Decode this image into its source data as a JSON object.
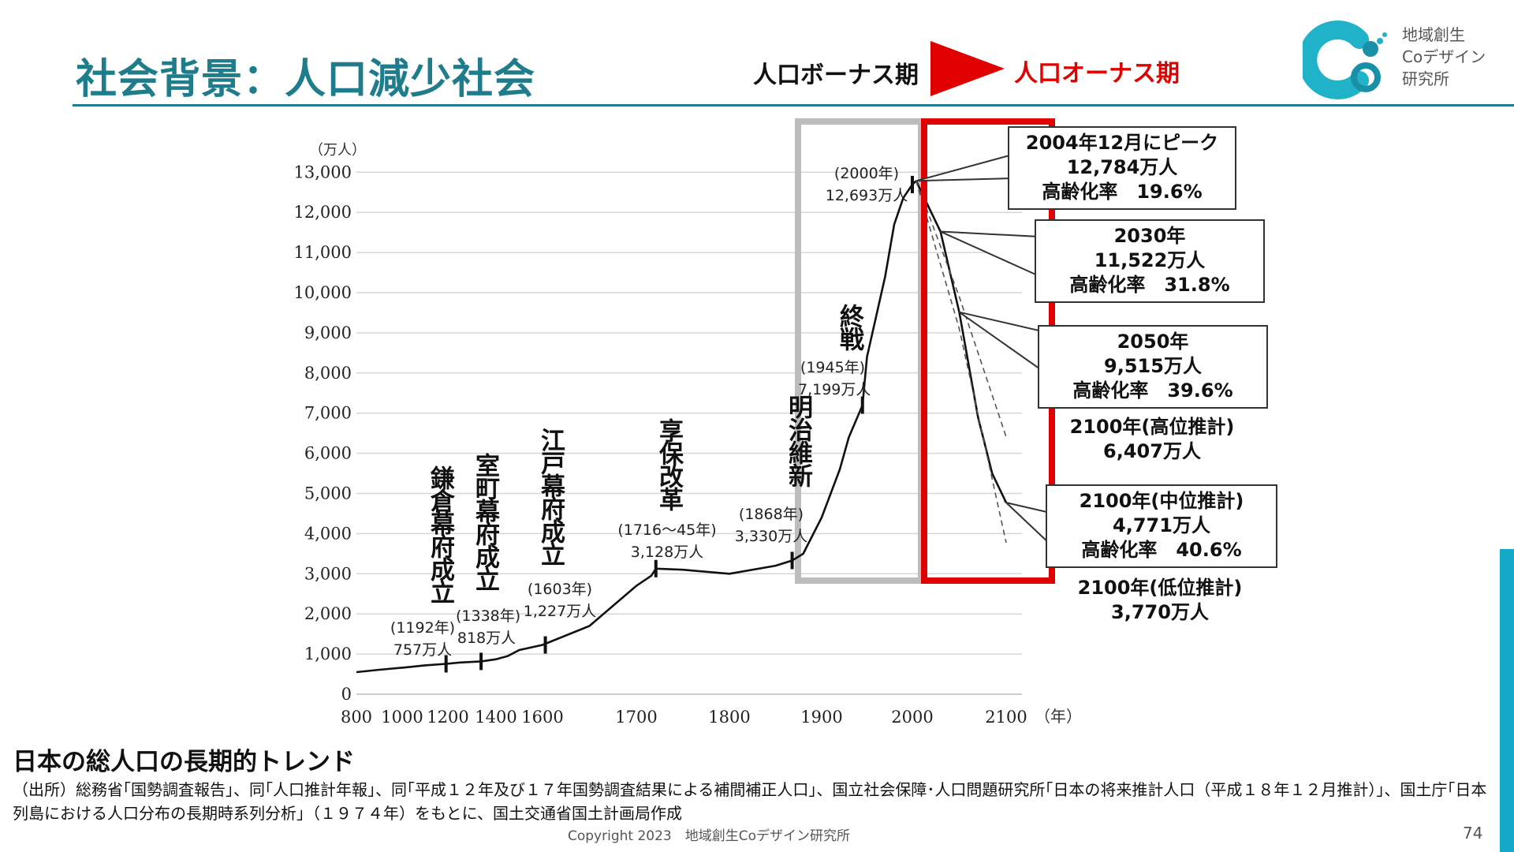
{
  "slide": {
    "title": "社会背景：人口減少社会",
    "phase_from": "人口ボーナス期",
    "phase_to": "人口オーナス期",
    "logo_lines": [
      "地域創生",
      "Coデザイン",
      "研究所"
    ],
    "subtitle": "日本の総人口の長期的トレンド",
    "source": "（出所）総務省｢国勢調査報告｣、同｢人口推計年報｣、同｢平成１２年及び１７年国勢調査結果による補間補正人口｣、国立社会保障･人口問題研究所｢日本の将来推計人口（平成１８年１２月推計）｣、国土庁｢日本列島における人口分布の長期時系列分析｣（１９７４年）をもとに、国土交通省国土計画局作成",
    "copyright": "Copyright 2023　地域創生Coデザイン研究所",
    "page_number": "74",
    "colors": {
      "accent": "#1f7c8a",
      "onus_red": "#e00000",
      "bonus_gray": "#bdbdbd",
      "side_bar": "#14a9c6"
    }
  },
  "chart_data": {
    "type": "line",
    "ylabel": "（万人）",
    "xlabel": "（年）",
    "xlim": [
      800,
      2100
    ],
    "ylim": [
      0,
      13000
    ],
    "x_ticks": [
      800,
      1000,
      1200,
      1400,
      1600,
      1700,
      1800,
      1900,
      2000,
      2100
    ],
    "y_ticks": [
      {
        "value": 0,
        "label": "0"
      },
      {
        "value": 1000,
        "label": "1,000"
      },
      {
        "value": 2000,
        "label": "2,000"
      },
      {
        "value": 3000,
        "label": "3,000"
      },
      {
        "value": 4000,
        "label": "4,000"
      },
      {
        "value": 5000,
        "label": "5,000"
      },
      {
        "value": 6000,
        "label": "6,000"
      },
      {
        "value": 7000,
        "label": "7,000"
      },
      {
        "value": 8000,
        "label": "8,000"
      },
      {
        "value": 9000,
        "label": "9,000"
      },
      {
        "value": 10000,
        "label": "10,000"
      },
      {
        "value": 11000,
        "label": "11,000"
      },
      {
        "value": 12000,
        "label": "12,000"
      },
      {
        "value": 13000,
        "label": "13,000"
      }
    ],
    "grid": true,
    "series": [
      {
        "values": [
          [
            800,
            551
          ],
          [
            900,
            610
          ],
          [
            1000,
            660
          ],
          [
            1100,
            720
          ],
          [
            1192,
            757
          ],
          [
            1250,
            790
          ],
          [
            1338,
            818
          ],
          [
            1400,
            870
          ],
          [
            1450,
            950
          ],
          [
            1500,
            1100
          ],
          [
            1600,
            1227
          ],
          [
            1650,
            1700
          ],
          [
            1700,
            2700
          ],
          [
            1716,
            2950
          ],
          [
            1721,
            3128
          ],
          [
            1750,
            3100
          ],
          [
            1800,
            3000
          ],
          [
            1850,
            3200
          ],
          [
            1868,
            3330
          ],
          [
            1880,
            3500
          ],
          [
            1900,
            4400
          ],
          [
            1920,
            5600
          ],
          [
            1930,
            6400
          ],
          [
            1945,
            7199
          ],
          [
            1950,
            8400
          ],
          [
            1960,
            9400
          ],
          [
            1970,
            10400
          ],
          [
            1980,
            11700
          ],
          [
            1990,
            12360
          ],
          [
            2000,
            12693
          ],
          [
            2004,
            12784
          ]
        ]
      },
      {
        "name": "中位推計",
        "values": [
          [
            2004,
            12784
          ],
          [
            2030,
            11522
          ],
          [
            2050,
            9515
          ],
          [
            2070,
            6900
          ],
          [
            2085,
            5500
          ],
          [
            2100,
            4771
          ]
        ]
      },
      {
        "name": "高位推計",
        "values": [
          [
            2004,
            12784
          ],
          [
            2050,
            9900
          ],
          [
            2100,
            6407
          ]
        ]
      },
      {
        "name": "低位推計",
        "values": [
          [
            2004,
            12784
          ],
          [
            2050,
            9100
          ],
          [
            2100,
            3770
          ]
        ]
      }
    ],
    "events": [
      {
        "year": 1192,
        "value": 757,
        "name": "鎌倉幕府成立",
        "date": "(1192年)",
        "pop": "757万人"
      },
      {
        "year": 1338,
        "value": 818,
        "name": "室町幕府成立",
        "date": "(1338年)",
        "pop": "818万人"
      },
      {
        "year": 1603,
        "value": 1227,
        "name": "江戸幕府成立",
        "date": "(1603年)",
        "pop": "1,227万人"
      },
      {
        "year": 1721,
        "value": 3128,
        "name": "享保改革",
        "date": "(1716～45年)",
        "pop": "3,128万人"
      },
      {
        "year": 1868,
        "value": 3330,
        "name": "明治維新",
        "date": "(1868年)",
        "pop": "3,330万人"
      },
      {
        "year": 1945,
        "value": 7199,
        "name": "終戦",
        "date": "(1945年)",
        "pop": "7,199万人"
      },
      {
        "year": 2000,
        "value": 12693,
        "name": "",
        "date": "(2000年)",
        "pop": "12,693万人"
      }
    ],
    "callouts": [
      {
        "year": 2004,
        "value": 12784,
        "lines": [
          "2004年12月にピーク",
          "12,784万人",
          "高齢化率　19.6%"
        ]
      },
      {
        "year": 2030,
        "value": 11522,
        "lines": [
          "2030年",
          "11,522万人",
          "高齢化率　31.8%"
        ]
      },
      {
        "year": 2050,
        "value": 9515,
        "lines": [
          "2050年",
          "9,515万人",
          "高齢化率　39.6%"
        ]
      },
      {
        "year": 2100,
        "value": 4771,
        "lines": [
          "2100年(中位推計)",
          "4,771万人",
          "高齢化率　40.6%"
        ]
      }
    ],
    "notes": [
      {
        "lines": [
          "2100年(高位推計)",
          "6,407万人"
        ]
      },
      {
        "lines": [
          "2100年(低位推計)",
          "3,770万人"
        ]
      }
    ]
  }
}
